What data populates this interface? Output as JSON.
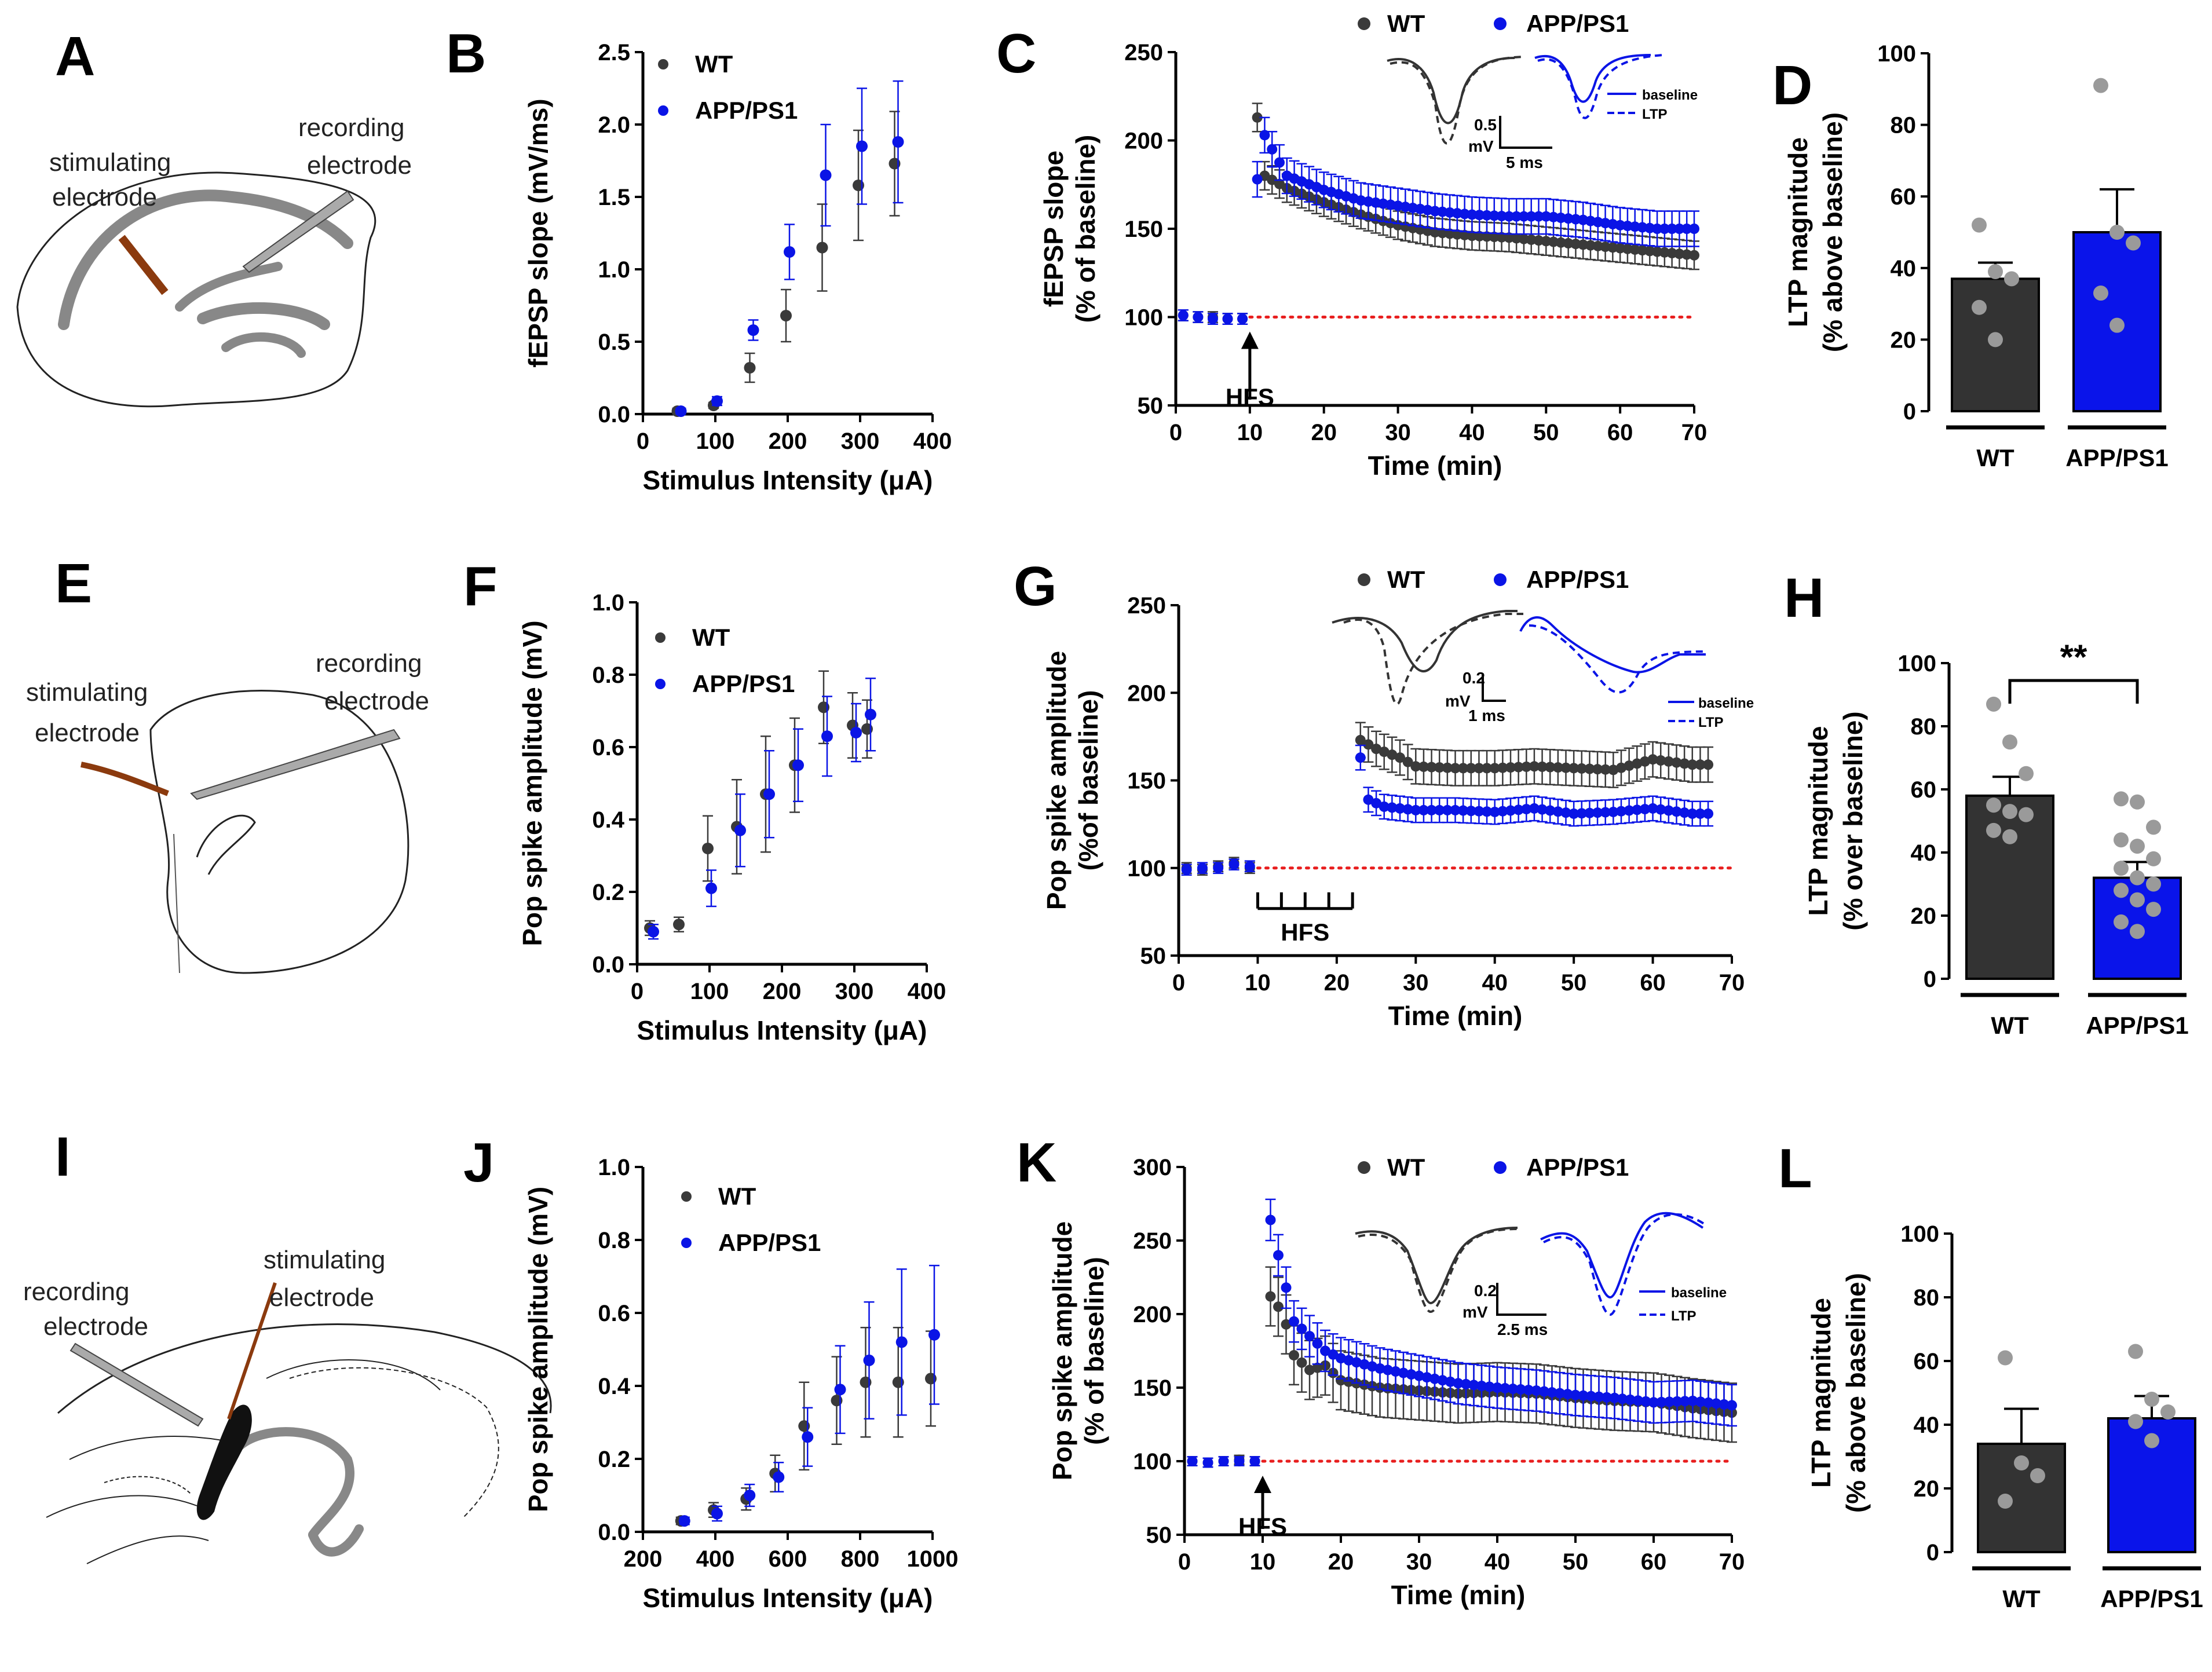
{
  "colors": {
    "wt": "#3a3a3a",
    "app": "#0a14e6",
    "app_bar": "#0a14ea",
    "wt_bar": "#333333",
    "baseline": "#e81e1e",
    "electrode": "#8b3a0e",
    "tissue": "#888888",
    "dots": "#9a9a9a"
  },
  "panels": {
    "A": {
      "letter": "A",
      "stim_label_1": "stimulating",
      "stim_label_2": "electrode",
      "rec_label_1": "recording",
      "rec_label_2": "electrode"
    },
    "E": {
      "letter": "E",
      "stim_label_1": "stimulating",
      "stim_label_2": "electrode",
      "rec_label_1": "recording",
      "rec_label_2": "electrode"
    },
    "I": {
      "letter": "I",
      "stim_label_1": "stimulating",
      "stim_label_2": "electrode",
      "rec_label_1": "recording",
      "rec_label_2": "electrode"
    }
  },
  "trace_labels": {
    "C": {
      "scale_v_1": "0.5",
      "scale_v_2": "mV",
      "scale_t": "5 ms",
      "leg_baseline": "baseline",
      "leg_ltp": "LTP"
    },
    "G": {
      "scale_v_1": "0.2",
      "scale_v_2": "mV",
      "scale_t": "1 ms",
      "leg_baseline": "baseline",
      "leg_ltp": "LTP"
    },
    "K": {
      "scale_v_1": "0.2",
      "scale_v_2": "mV",
      "scale_t": "2.5 ms",
      "leg_baseline": "baseline",
      "leg_ltp": "LTP"
    }
  },
  "chart_data": [
    {
      "id": "B",
      "letter": "B",
      "type": "scatter",
      "xlabel": "Stimulus Intensity (μA)",
      "ylabel": "fEPSP slope (mV/ms)",
      "xlim": [
        0,
        400
      ],
      "ylim": [
        0,
        2.5
      ],
      "xticks": [
        0,
        100,
        200,
        300,
        400
      ],
      "yticks": [
        "0.0",
        "0.5",
        "1.0",
        "1.5",
        "2.0",
        "2.5"
      ],
      "legend": [
        "WT",
        "APP/PS1"
      ],
      "series": [
        {
          "name": "WT",
          "x": [
            50,
            100,
            150,
            200,
            250,
            300,
            350
          ],
          "y": [
            0.02,
            0.06,
            0.32,
            0.68,
            1.15,
            1.58,
            1.73
          ],
          "err": [
            0.02,
            0.02,
            0.1,
            0.18,
            0.3,
            0.38,
            0.36
          ]
        },
        {
          "name": "APP/PS1",
          "x": [
            50,
            100,
            150,
            200,
            250,
            300,
            350
          ],
          "y": [
            0.02,
            0.09,
            0.58,
            1.12,
            1.65,
            1.85,
            1.88
          ],
          "err": [
            0.02,
            0.03,
            0.07,
            0.19,
            0.35,
            0.4,
            0.42
          ]
        }
      ]
    },
    {
      "id": "C",
      "letter": "C",
      "type": "line",
      "xlabel": "Time (min)",
      "ylabel_1": "fEPSP slope",
      "ylabel_2": "(% of baseline)",
      "xlim": [
        0,
        70
      ],
      "ylim": [
        50,
        250
      ],
      "xticks": [
        0,
        10,
        20,
        30,
        40,
        50,
        60,
        70
      ],
      "yticks": [
        "50",
        "100",
        "150",
        "200",
        "250"
      ],
      "legend": [
        "WT",
        "APP/PS1"
      ],
      "annotation": "HFS",
      "hfs_time": 10,
      "baseline_value": 100,
      "series": [
        {
          "name": "WT",
          "points": [
            [
              1,
              101
            ],
            [
              3,
              100
            ],
            [
              5,
              100
            ],
            [
              7,
              99
            ],
            [
              9,
              99
            ],
            [
              11,
              213
            ],
            [
              12,
              180
            ],
            [
              15,
              173
            ],
            [
              20,
              165
            ],
            [
              25,
              158
            ],
            [
              30,
              152
            ],
            [
              35,
              148
            ],
            [
              40,
              146
            ],
            [
              45,
              145
            ],
            [
              50,
              143
            ],
            [
              55,
              141
            ],
            [
              60,
              139
            ],
            [
              65,
              137
            ],
            [
              70,
              135
            ]
          ],
          "err": 8
        },
        {
          "name": "APP/PS1",
          "points": [
            [
              1,
              101
            ],
            [
              3,
              100
            ],
            [
              5,
              99
            ],
            [
              7,
              99
            ],
            [
              9,
              99
            ],
            [
              11,
              178
            ],
            [
              12,
              203
            ],
            [
              13,
              195
            ],
            [
              15,
              180
            ],
            [
              20,
              172
            ],
            [
              25,
              166
            ],
            [
              30,
              163
            ],
            [
              35,
              160
            ],
            [
              40,
              158
            ],
            [
              45,
              157
            ],
            [
              50,
              157
            ],
            [
              55,
              155
            ],
            [
              60,
              152
            ],
            [
              65,
              150
            ],
            [
              70,
              150
            ]
          ],
          "err": 10
        }
      ]
    },
    {
      "id": "D",
      "letter": "D",
      "type": "bar",
      "ylabel_1": "LTP magnitude",
      "ylabel_2": "(% above baseline)",
      "ylim": [
        0,
        100
      ],
      "yticks": [
        "0",
        "20",
        "40",
        "60",
        "80",
        "100"
      ],
      "categories": [
        "WT",
        "APP/PS1"
      ],
      "values": [
        37,
        50
      ],
      "err": [
        4.5,
        12
      ],
      "points": [
        [
          52,
          39,
          37,
          29,
          20
        ],
        [
          91,
          50,
          47,
          33,
          24
        ]
      ]
    },
    {
      "id": "F",
      "letter": "F",
      "type": "scatter",
      "xlabel": "Stimulus Intensity (μA)",
      "ylabel": "Pop spike amplitude (mV)",
      "xlim": [
        0,
        400
      ],
      "ylim": [
        0,
        1.0
      ],
      "xticks": [
        0,
        100,
        200,
        300,
        400
      ],
      "yticks": [
        "0.0",
        "0.2",
        "0.4",
        "0.6",
        "0.8",
        "1.0"
      ],
      "legend": [
        "WT",
        "APP/PS1"
      ],
      "series": [
        {
          "name": "WT",
          "x": [
            20,
            60,
            100,
            140,
            180,
            220,
            260,
            300,
            320
          ],
          "y": [
            0.1,
            0.11,
            0.32,
            0.38,
            0.47,
            0.55,
            0.71,
            0.66,
            0.65
          ],
          "err": [
            0.02,
            0.02,
            0.09,
            0.13,
            0.16,
            0.13,
            0.1,
            0.09,
            0.08
          ]
        },
        {
          "name": "APP/PS1",
          "x": [
            20,
            100,
            140,
            180,
            220,
            260,
            300,
            320
          ],
          "y": [
            0.09,
            0.21,
            0.37,
            0.47,
            0.55,
            0.63,
            0.64,
            0.69
          ],
          "err": [
            0.02,
            0.05,
            0.1,
            0.12,
            0.1,
            0.11,
            0.08,
            0.1
          ]
        }
      ]
    },
    {
      "id": "G",
      "letter": "G",
      "type": "line",
      "xlabel": "Time (min)",
      "ylabel_1": "Pop spike amplitude",
      "ylabel_2": "(%of baseline)",
      "xlim": [
        0,
        70
      ],
      "ylim": [
        50,
        250
      ],
      "xticks": [
        0,
        10,
        20,
        30,
        40,
        50,
        60,
        70
      ],
      "yticks": [
        "50",
        "100",
        "150",
        "200",
        "250"
      ],
      "legend": [
        "WT",
        "APP/PS1"
      ],
      "annotation": "HFS",
      "hfs_times": [
        10,
        13,
        16,
        19,
        22
      ],
      "baseline_value": 100,
      "series": [
        {
          "name": "WT",
          "points": [
            [
              1,
              100
            ],
            [
              3,
              99
            ],
            [
              5,
              101
            ],
            [
              7,
              103
            ],
            [
              9,
              100
            ],
            [
              23,
              173
            ],
            [
              25,
              168
            ],
            [
              28,
              163
            ],
            [
              30,
              158
            ],
            [
              35,
              157
            ],
            [
              40,
              157
            ],
            [
              45,
              158
            ],
            [
              50,
              157
            ],
            [
              55,
              156
            ],
            [
              60,
              162
            ],
            [
              65,
              159
            ],
            [
              67,
              159
            ]
          ],
          "err": 10
        },
        {
          "name": "APP/PS1",
          "points": [
            [
              1,
              99
            ],
            [
              3,
              100
            ],
            [
              5,
              100
            ],
            [
              7,
              102
            ],
            [
              9,
              101
            ],
            [
              23,
              163
            ],
            [
              24,
              139
            ],
            [
              26,
              135
            ],
            [
              30,
              133
            ],
            [
              35,
              133
            ],
            [
              40,
              132
            ],
            [
              45,
              134
            ],
            [
              50,
              131
            ],
            [
              55,
              132
            ],
            [
              60,
              134
            ],
            [
              65,
              131
            ],
            [
              67,
              131
            ]
          ],
          "err": 7
        }
      ]
    },
    {
      "id": "H",
      "letter": "H",
      "type": "bar",
      "ylabel_1": "LTP magnitude",
      "ylabel_2": "(% over baseline)",
      "ylim": [
        0,
        100
      ],
      "yticks": [
        "0",
        "20",
        "40",
        "60",
        "80",
        "100"
      ],
      "categories": [
        "WT",
        "APP/PS1"
      ],
      "values": [
        58,
        32
      ],
      "err": [
        6,
        5
      ],
      "significance": "**",
      "points": [
        [
          87,
          75,
          65,
          55,
          53,
          52,
          47,
          45
        ],
        [
          57,
          56,
          48,
          44,
          42,
          38,
          35,
          32,
          30,
          28,
          25,
          22,
          18,
          15
        ]
      ]
    },
    {
      "id": "J",
      "letter": "J",
      "type": "scatter",
      "xlabel": "Stimulus Intensity (μA)",
      "ylabel": "Pop spike amplitude (mV)",
      "xlim": [
        200,
        1000
      ],
      "ylim": [
        0,
        1.0
      ],
      "xticks": [
        200,
        400,
        600,
        800,
        1000
      ],
      "yticks": [
        "0.0",
        "0.2",
        "0.4",
        "0.6",
        "0.8",
        "1.0"
      ],
      "legend": [
        "WT",
        "APP/PS1"
      ],
      "series": [
        {
          "name": "WT",
          "x": [
            310,
            400,
            490,
            570,
            650,
            740,
            820,
            910,
            1000
          ],
          "y": [
            0.03,
            0.06,
            0.09,
            0.16,
            0.29,
            0.36,
            0.41,
            0.41,
            0.42
          ],
          "err": [
            0.01,
            0.02,
            0.03,
            0.05,
            0.12,
            0.12,
            0.15,
            0.15,
            0.13
          ]
        },
        {
          "name": "APP/PS1",
          "x": [
            310,
            400,
            490,
            570,
            650,
            740,
            820,
            910,
            1000
          ],
          "y": [
            0.03,
            0.05,
            0.1,
            0.15,
            0.26,
            0.39,
            0.47,
            0.52,
            0.54
          ],
          "err": [
            0.01,
            0.02,
            0.03,
            0.04,
            0.08,
            0.12,
            0.16,
            0.2,
            0.19
          ]
        }
      ]
    },
    {
      "id": "K",
      "letter": "K",
      "type": "line",
      "xlabel": "Time (min)",
      "ylabel_1": "Pop spike amplitude",
      "ylabel_2": "(% of baseline)",
      "xlim": [
        0,
        70
      ],
      "ylim": [
        50,
        300
      ],
      "xticks": [
        0,
        10,
        20,
        30,
        40,
        50,
        60,
        70
      ],
      "yticks": [
        "50",
        "100",
        "150",
        "200",
        "250",
        "300"
      ],
      "legend": [
        "WT",
        "APP/PS1"
      ],
      "annotation": "HFS",
      "hfs_time": 10,
      "baseline_value": 100,
      "series": [
        {
          "name": "WT",
          "points": [
            [
              1,
              100
            ],
            [
              3,
              99
            ],
            [
              5,
              100
            ],
            [
              7,
              101
            ],
            [
              9,
              100
            ],
            [
              11,
              212
            ],
            [
              12,
              205
            ],
            [
              13,
              193
            ],
            [
              14,
              172
            ],
            [
              16,
              162
            ],
            [
              18,
              165
            ],
            [
              20,
              155
            ],
            [
              25,
              150
            ],
            [
              30,
              148
            ],
            [
              35,
              146
            ],
            [
              40,
              147
            ],
            [
              45,
              146
            ],
            [
              50,
              143
            ],
            [
              55,
              141
            ],
            [
              60,
              140
            ],
            [
              65,
              136
            ],
            [
              70,
              133
            ]
          ],
          "err": 20
        },
        {
          "name": "APP/PS1",
          "points": [
            [
              1,
              100
            ],
            [
              3,
              99
            ],
            [
              5,
              100
            ],
            [
              7,
              100
            ],
            [
              9,
              100
            ],
            [
              11,
              264
            ],
            [
              12,
              240
            ],
            [
              13,
              218
            ],
            [
              14,
              195
            ],
            [
              16,
              185
            ],
            [
              18,
              175
            ],
            [
              20,
              170
            ],
            [
              25,
              163
            ],
            [
              30,
              158
            ],
            [
              35,
              153
            ],
            [
              40,
              150
            ],
            [
              45,
              148
            ],
            [
              50,
              145
            ],
            [
              55,
              143
            ],
            [
              60,
              140
            ],
            [
              65,
              141
            ],
            [
              70,
              138
            ]
          ],
          "err": 14
        }
      ]
    },
    {
      "id": "L",
      "letter": "L",
      "type": "bar",
      "ylabel_1": "LTP magnitude",
      "ylabel_2": "(% above baseline)",
      "ylim": [
        0,
        100
      ],
      "yticks": [
        "0",
        "20",
        "40",
        "60",
        "80",
        "100"
      ],
      "categories": [
        "WT",
        "APP/PS1"
      ],
      "values": [
        34,
        42
      ],
      "err": [
        11,
        7
      ],
      "points": [
        [
          61,
          28,
          24,
          16
        ],
        [
          63,
          48,
          44,
          41,
          35
        ]
      ]
    }
  ]
}
